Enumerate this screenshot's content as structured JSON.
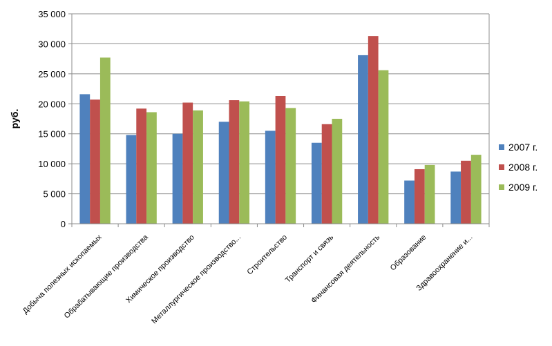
{
  "chart_data": {
    "type": "bar",
    "title": "",
    "xlabel": "",
    "ylabel": "руб.",
    "ylim": [
      0,
      35000
    ],
    "yticks": [
      0,
      5000,
      10000,
      15000,
      20000,
      25000,
      30000,
      35000
    ],
    "ytick_labels": [
      "0",
      "5 000",
      "10 000",
      "15 000",
      "20 000",
      "25 000",
      "30 000",
      "35 000"
    ],
    "grid": true,
    "legend_position": "right",
    "categories": [
      "Добыча полезных ископаемых",
      "Обрабатывающие производства",
      "Химическое производство",
      "Металлургическое производство...",
      "Строительство",
      "Транспорт и связь",
      "Финансовая деятельность",
      "Образование",
      "Здравоохранение и..."
    ],
    "series": [
      {
        "name": "2007 г.",
        "color": "#4f81bd",
        "values": [
          21600,
          14800,
          15000,
          17000,
          15500,
          13500,
          28100,
          7200,
          8700
        ]
      },
      {
        "name": "2008 г.",
        "color": "#c0504d",
        "values": [
          20700,
          19200,
          20200,
          20600,
          21300,
          16600,
          31300,
          9100,
          10500
        ]
      },
      {
        "name": "2009 г.",
        "color": "#9bbb59",
        "values": [
          27700,
          18600,
          18900,
          20400,
          19300,
          17500,
          25600,
          9800,
          11500
        ]
      }
    ]
  }
}
